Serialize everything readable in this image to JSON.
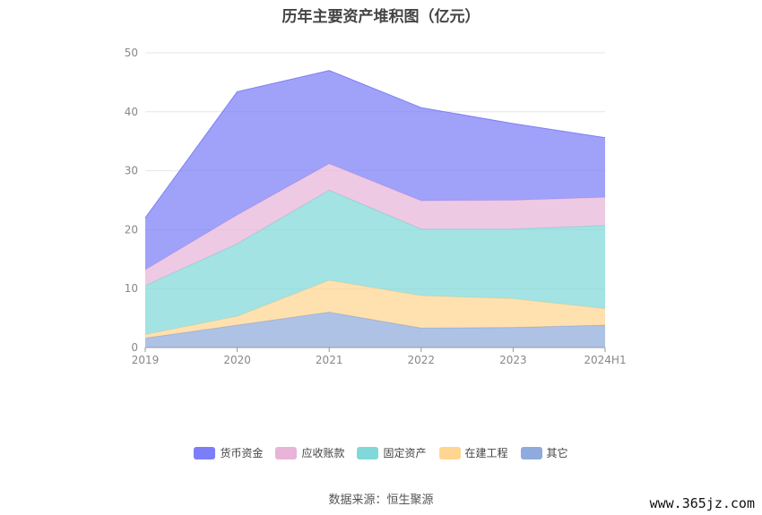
{
  "chart_data": {
    "type": "area",
    "stacked": true,
    "title": "历年主要资产堆积图（亿元）",
    "x": [
      "2019",
      "2020",
      "2021",
      "2022",
      "2023",
      "2024H1"
    ],
    "ylim": [
      0,
      50
    ],
    "yticks": [
      0,
      10,
      20,
      30,
      40,
      50
    ],
    "grid": true,
    "legend_position": "bottom",
    "series": [
      {
        "name": "其它",
        "color": "#8faadc",
        "values": [
          1.6,
          3.8,
          6.0,
          3.3,
          3.4,
          3.8
        ]
      },
      {
        "name": "在建工程",
        "color": "#ffd591",
        "values": [
          0.6,
          1.5,
          5.4,
          5.5,
          4.9,
          2.8
        ]
      },
      {
        "name": "固定资产",
        "color": "#80d8d8",
        "values": [
          8.3,
          12.3,
          15.3,
          11.3,
          11.8,
          14.1
        ]
      },
      {
        "name": "应收账款",
        "color": "#e8b4d8",
        "values": [
          2.7,
          4.9,
          4.5,
          4.8,
          4.9,
          4.8
        ]
      },
      {
        "name": "货币资金",
        "color": "#7b7ef6",
        "values": [
          8.8,
          20.9,
          15.8,
          15.8,
          13.0,
          10.1
        ]
      }
    ]
  },
  "legend_order": [
    "货币资金",
    "应收账款",
    "固定资产",
    "在建工程",
    "其它"
  ],
  "source": "数据来源：恒生聚源",
  "watermark": "www.365jz.com"
}
